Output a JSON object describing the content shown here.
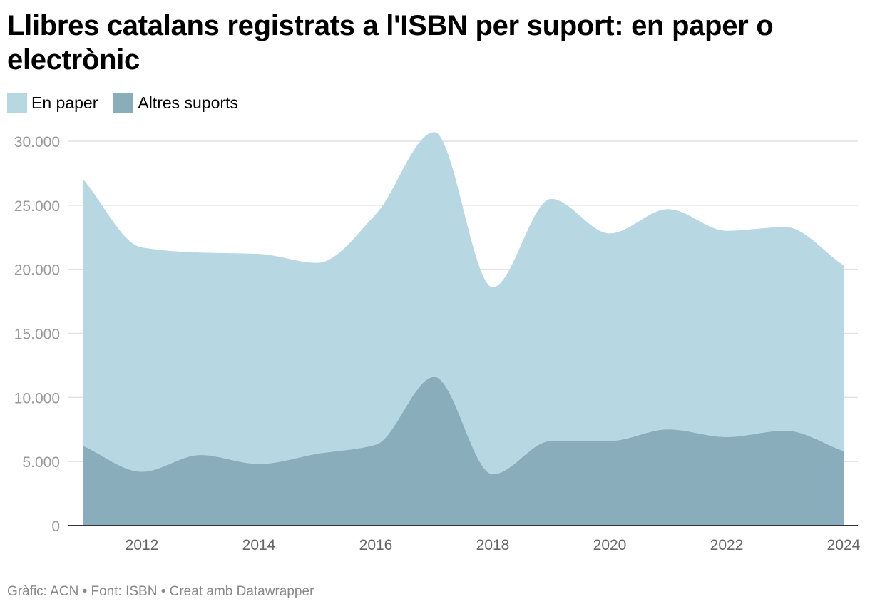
{
  "title": "Llibres catalans registrats a l'ISBN per suport: en paper o electrònic",
  "legend": [
    {
      "label": "En paper",
      "color": "#b7d7e3"
    },
    {
      "label": "Altres suports",
      "color": "#89adba"
    }
  ],
  "footer": "Gràfic: ACN • Font: ISBN • Creat amb Datawrapper",
  "chart_data": {
    "type": "area",
    "title": "Llibres catalans registrats a l'ISBN per suport: en paper o electrònic",
    "x": [
      2011,
      2012,
      2013,
      2014,
      2015,
      2016,
      2017,
      2018,
      2019,
      2020,
      2021,
      2022,
      2023,
      2024
    ],
    "series": [
      {
        "name": "En paper",
        "color": "#b7d7e3",
        "values": [
          27000,
          21700,
          21300,
          21200,
          20500,
          24300,
          30700,
          18600,
          25500,
          22800,
          24700,
          23000,
          23300,
          20300
        ]
      },
      {
        "name": "Altres suports",
        "color": "#89adba",
        "values": [
          6200,
          4200,
          5500,
          4800,
          5600,
          6300,
          11600,
          4000,
          6600,
          6600,
          7500,
          6900,
          7400,
          5800
        ]
      }
    ],
    "yticks": [
      0,
      5000,
      10000,
      15000,
      20000,
      25000,
      30000
    ],
    "ytick_labels": [
      "0",
      "5.000",
      "10.000",
      "15.000",
      "20.000",
      "25.000",
      "30.000"
    ],
    "xticks": [
      2012,
      2014,
      2016,
      2018,
      2020,
      2022,
      2024
    ],
    "xtick_labels": [
      "2012",
      "2014",
      "2016",
      "2018",
      "2020",
      "2022",
      "2024"
    ],
    "ylim": [
      0,
      30000
    ],
    "xlim": [
      2011,
      2024
    ],
    "grid": true,
    "overlapping": true
  }
}
